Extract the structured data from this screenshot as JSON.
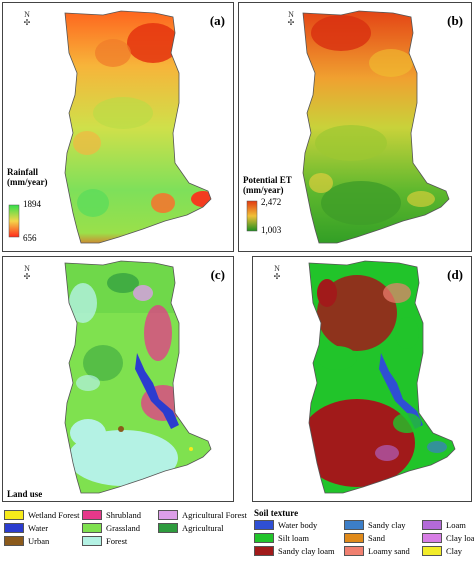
{
  "colors": {
    "rain_high": "#33e04a",
    "rain_mid": "#f4d64a",
    "rain_low": "#ff2a1a",
    "et_high": "#e23a12",
    "et_mid": "#f0c038",
    "et_low": "#1f8f20"
  },
  "panels": {
    "a": {
      "label": "(a)",
      "north": "N",
      "legend_title": "Rainfall (mm/year)",
      "max": "1894",
      "min": "656"
    },
    "b": {
      "label": "(b)",
      "north": "N",
      "legend_title": "Potential ET (mm/year)",
      "max": "2,472",
      "min": "1,003"
    },
    "c": {
      "label": "(c)",
      "north": "N",
      "legend_title": "Land use",
      "classes": [
        {
          "name": "Wetland Forest",
          "color": "#f6ea1a"
        },
        {
          "name": "Shrubland",
          "color": "#e5388a"
        },
        {
          "name": "Agricultural Forest",
          "color": "#dc9ee8"
        },
        {
          "name": "Water",
          "color": "#2b3ccf"
        },
        {
          "name": "Grassland",
          "color": "#7fe14f"
        },
        {
          "name": "Agricultural",
          "color": "#2e9b3e"
        },
        {
          "name": "Urban",
          "color": "#8b5a1b"
        },
        {
          "name": "Forest",
          "color": "#b4f2e4"
        }
      ]
    },
    "d": {
      "label": "(d)",
      "north": "N",
      "legend_title": "Soil texture",
      "classes": [
        {
          "name": "Water body",
          "color": "#2f4fd3"
        },
        {
          "name": "Sandy clay",
          "color": "#3c7ec8"
        },
        {
          "name": "Loam",
          "color": "#b36ad8"
        },
        {
          "name": "Silt loam",
          "color": "#21c42a"
        },
        {
          "name": "Sand",
          "color": "#e08a1a"
        },
        {
          "name": "Clay loam",
          "color": "#d87ee6"
        },
        {
          "name": "Sandy clay loam",
          "color": "#a11a1a"
        },
        {
          "name": "Loamy sand",
          "color": "#f08070"
        },
        {
          "name": "Clay",
          "color": "#f2ec2a"
        }
      ]
    }
  }
}
